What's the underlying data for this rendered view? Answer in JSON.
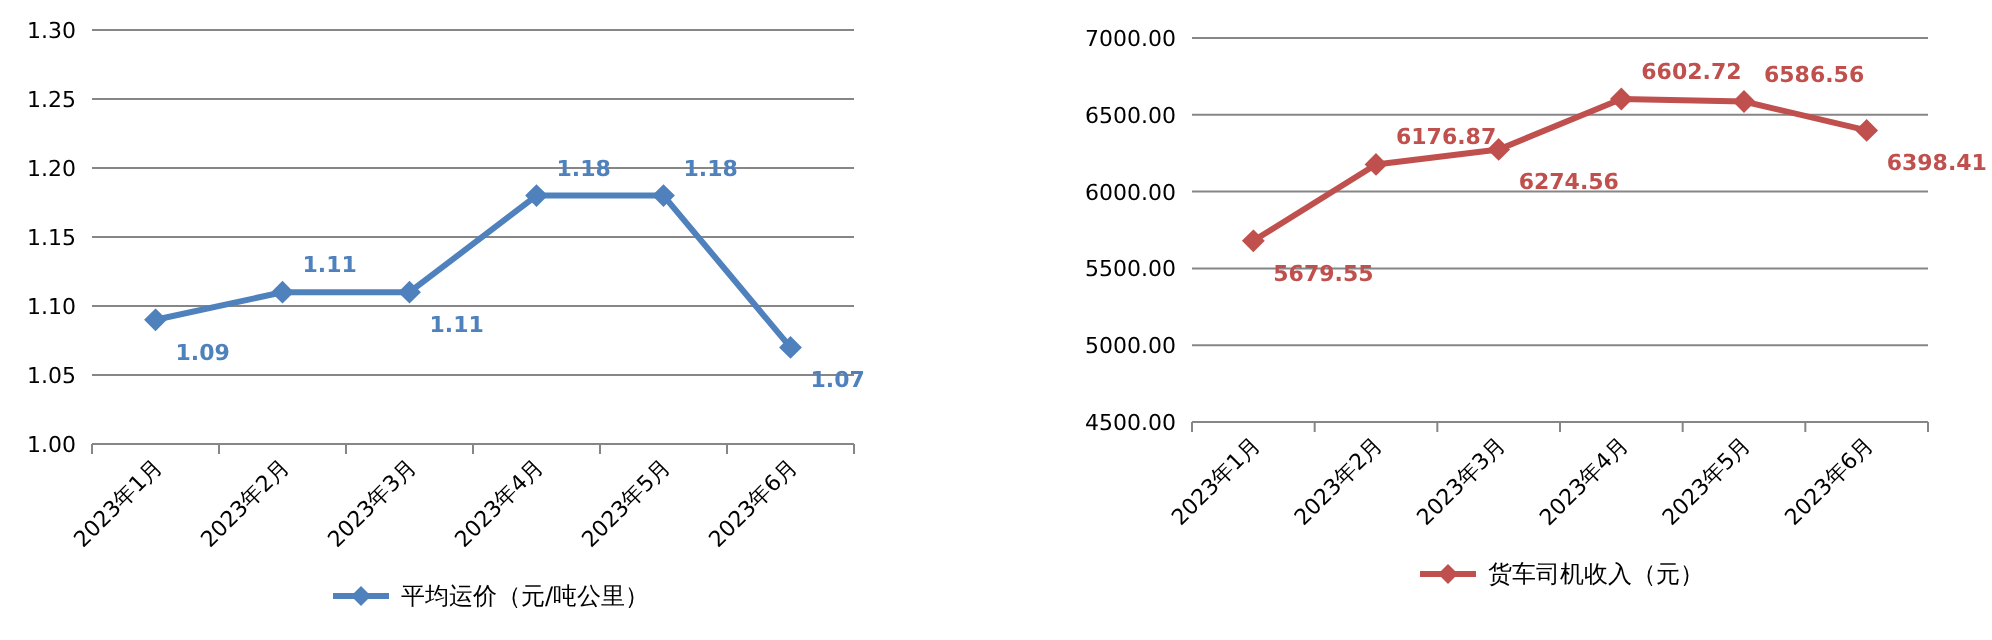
{
  "chart_data": [
    {
      "type": "line",
      "categories": [
        "2023年1月",
        "2023年2月",
        "2023年3月",
        "2023年4月",
        "2023年5月",
        "2023年6月"
      ],
      "series": [
        {
          "name": "平均运价（元/吨公里）",
          "color": "#4f81bd",
          "values": [
            1.09,
            1.11,
            1.11,
            1.18,
            1.18,
            1.07
          ]
        }
      ],
      "ylim": [
        1.0,
        1.3
      ],
      "yticks": [
        {
          "value": 1.0,
          "label": "1.00"
        },
        {
          "value": 1.05,
          "label": "1.05"
        },
        {
          "value": 1.1,
          "label": "1.10"
        },
        {
          "value": 1.15,
          "label": "1.15"
        },
        {
          "value": 1.2,
          "label": "1.20"
        },
        {
          "value": 1.25,
          "label": "1.25"
        },
        {
          "value": 1.3,
          "label": "1.30"
        }
      ],
      "grid": "y",
      "legend": "bottom",
      "marker": "diamond",
      "data_labels": true
    },
    {
      "type": "line",
      "categories": [
        "2023年1月",
        "2023年2月",
        "2023年3月",
        "2023年4月",
        "2023年5月",
        "2023年6月"
      ],
      "series": [
        {
          "name": "货车司机收入（元）",
          "color": "#c0504d",
          "values": [
            5679.55,
            6176.87,
            6274.56,
            6602.72,
            6586.56,
            6398.41
          ]
        }
      ],
      "ylim": [
        4500,
        7000
      ],
      "yticks": [
        {
          "value": 4500,
          "label": "4500.00"
        },
        {
          "value": 5000,
          "label": "5000.00"
        },
        {
          "value": 5500,
          "label": "5500.00"
        },
        {
          "value": 6000,
          "label": "6000.00"
        },
        {
          "value": 6500,
          "label": "6500.00"
        },
        {
          "value": 7000,
          "label": "7000.00"
        }
      ],
      "grid": "y",
      "legend": "bottom",
      "marker": "diamond",
      "data_labels": true
    }
  ]
}
